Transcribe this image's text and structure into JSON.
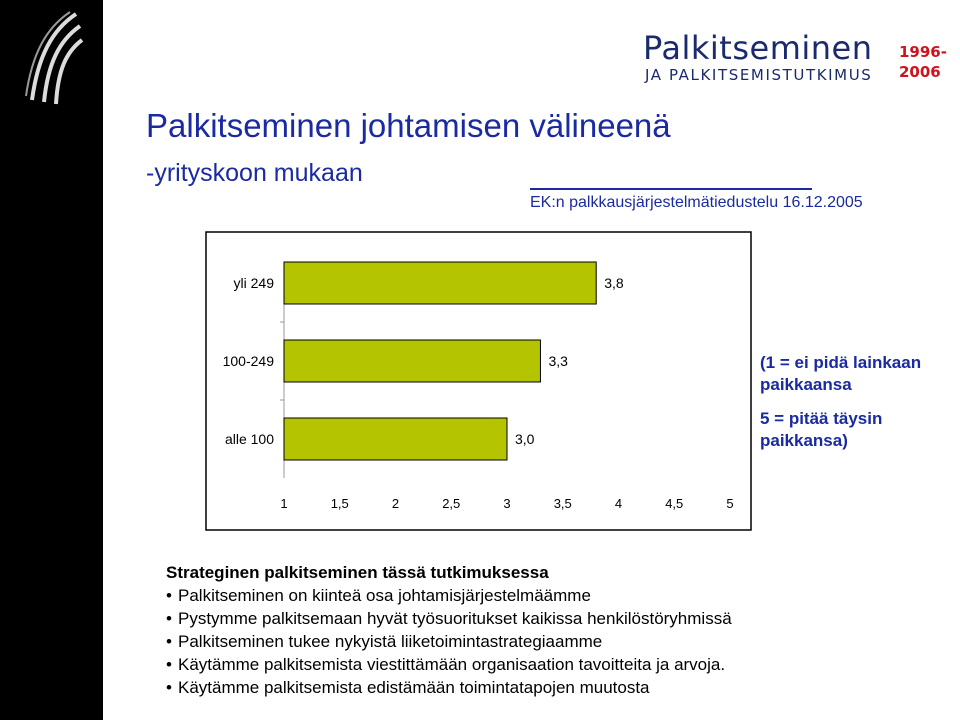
{
  "brand": {
    "name": "Palkitseminen",
    "subtitle": "JA PALKITSEMISTUTKIMUS",
    "years": "1996-\n2006"
  },
  "slide": {
    "title": "Palkitseminen johtamisen välineenä",
    "subtitle": "-yrityskoon mukaan",
    "source": "EK:n palkkausjärjestelmätiedustelu 16.12.2005"
  },
  "chart_data": {
    "type": "bar",
    "orientation": "horizontal",
    "categories": [
      "yli 249",
      "100-249",
      "alle 100"
    ],
    "values": [
      3.8,
      3.3,
      3.0
    ],
    "data_labels": [
      "3,8",
      "3,3",
      "3,0"
    ],
    "x_ticks": [
      "1",
      "1,5",
      "2",
      "2,5",
      "3",
      "3,5",
      "4",
      "4,5",
      "5"
    ],
    "xlim": [
      1,
      5
    ],
    "bar_color": "#b5c400",
    "grid": false
  },
  "legend_note": {
    "line1": "(1 = ei pidä lainkaan\npaikkaansa",
    "line2": "5 = pitää täysin\npaikkansa)"
  },
  "key_points": {
    "heading": "Strateginen palkitseminen tässä tutkimuksessa",
    "items": [
      "Palkitseminen on kiinteä osa johtamisjärjestelmäämme",
      "Pystymme palkitsemaan hyvät työsuoritukset kaikissa henkilöstöryhmissä",
      "Palkitseminen tukee nykyistä liiketoimintastrategiaamme",
      "Käytämme palkitsemista viestittämään organisaation tavoitteita ja arvoja.",
      "Käytämme palkitsemista edistämään toimintatapojen muutosta"
    ]
  },
  "colors": {
    "left_bar": "#000000",
    "title": "#1a2aa0",
    "brand": "#1a2a6c",
    "brand_years": "#d0121b"
  }
}
